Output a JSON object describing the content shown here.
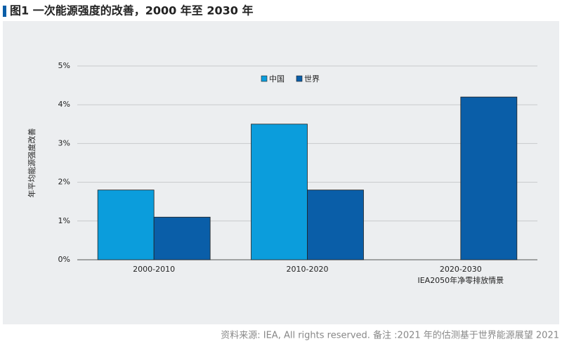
{
  "chart_data": {
    "type": "bar",
    "title": "图1 一次能源强度的改善，2000 年至 2030 年",
    "y_label": "年平均能源强度改善",
    "categories": [
      "2000-2010",
      "2010-2020",
      "2020-2030"
    ],
    "category_sublabels": [
      null,
      null,
      "IEA2050年净零排放情景"
    ],
    "series": [
      {
        "name": "中国",
        "color": "#0b9ddc",
        "values": [
          1.8,
          3.5,
          null
        ]
      },
      {
        "name": "世界",
        "color": "#0a5ea8",
        "values": [
          1.1,
          1.8,
          4.2
        ]
      }
    ],
    "ylim": [
      0,
      5
    ],
    "yticks": [
      {
        "value": 0,
        "label": "0%"
      },
      {
        "value": 1,
        "label": "1%"
      },
      {
        "value": 2,
        "label": "2%"
      },
      {
        "value": 3,
        "label": "3%"
      },
      {
        "value": 4,
        "label": "4%"
      },
      {
        "value": 5,
        "label": "5%"
      }
    ],
    "grid": true,
    "legend": "top",
    "source": "资料来源: IEA, All rights reserved. 备注 :2021 年的估测基于世界能源展望 2021"
  }
}
